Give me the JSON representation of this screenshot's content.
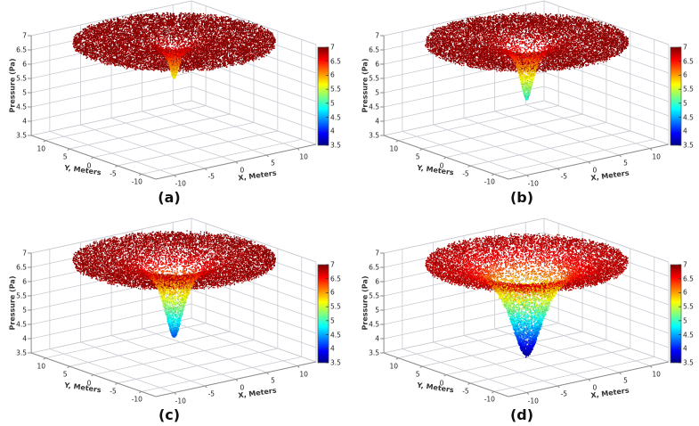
{
  "figure": {
    "background": "#ffffff",
    "grid_color": "#c9cbd2",
    "axis_color": "#8a8a8a",
    "tick_color": "#222222",
    "label_color": "#333333",
    "caption_color": "#111111",
    "colorbar_border": "#555555"
  },
  "chart_data": [
    {
      "type": "scatter3d",
      "label": "(a)",
      "xlabel": "X, Meters",
      "ylabel": "Y, Meters",
      "zlabel": "Pressure (Pa)",
      "x_ticks": [
        -10,
        -5,
        0,
        5,
        10
      ],
      "y_ticks": [
        10,
        5,
        0,
        -5,
        -10
      ],
      "z_ticks": [
        3.5,
        4,
        4.5,
        5,
        5.5,
        6,
        6.5,
        7
      ],
      "colorbar_ticks": [
        7,
        6.5,
        6,
        5.5,
        5,
        4.5,
        4,
        3.5
      ],
      "xlim": [
        -13,
        13
      ],
      "ylim": [
        -13,
        13
      ],
      "zlim": [
        3.5,
        7
      ],
      "colormap": "jet",
      "grid": true,
      "points": {
        "disc_radius_m": 13,
        "far_pressure_pa": 6.95,
        "tip_pressure_pa": 5.7,
        "core_radius_m": 0.85,
        "n_disc": 12000,
        "n_funnel": 600,
        "seed": 7
      },
      "description": "Flat pressure disc near 7 Pa with a narrow shallow vortex core dipping to about 5.7 Pa"
    },
    {
      "type": "scatter3d",
      "label": "(b)",
      "xlabel": "X, Meters",
      "ylabel": "Y, Meters",
      "zlabel": "Pressure (Pa)",
      "x_ticks": [
        -10,
        -5,
        0,
        5,
        10
      ],
      "y_ticks": [
        10,
        5,
        0,
        -5,
        -10
      ],
      "z_ticks": [
        3.5,
        4,
        4.5,
        5,
        5.5,
        6,
        6.5,
        7
      ],
      "colorbar_ticks": [
        7,
        6.5,
        6,
        5.5,
        5,
        4.5,
        4,
        3.5
      ],
      "xlim": [
        -13,
        13
      ],
      "ylim": [
        -13,
        13
      ],
      "zlim": [
        3.5,
        7
      ],
      "colormap": "jet",
      "grid": true,
      "points": {
        "disc_radius_m": 13,
        "far_pressure_pa": 6.95,
        "tip_pressure_pa": 4.95,
        "core_radius_m": 1.1,
        "n_disc": 12000,
        "n_funnel": 1100,
        "seed": 11
      },
      "description": "Pressure disc near 7 Pa with vortex funnel dipping to about 5.0 Pa"
    },
    {
      "type": "scatter3d",
      "label": "(c)",
      "xlabel": "X, Meters",
      "ylabel": "Y, Meters",
      "zlabel": "Pressure (Pa)",
      "x_ticks": [
        -10,
        -5,
        0,
        5,
        10
      ],
      "y_ticks": [
        10,
        5,
        0,
        -5,
        -10
      ],
      "z_ticks": [
        3.5,
        4,
        4.5,
        5,
        5.5,
        6,
        6.5,
        7
      ],
      "colorbar_ticks": [
        7,
        6.5,
        6,
        5.5,
        5,
        4.5,
        4,
        3.5
      ],
      "xlim": [
        -13,
        13
      ],
      "ylim": [
        -13,
        13
      ],
      "zlim": [
        3.5,
        7
      ],
      "colormap": "jet",
      "grid": true,
      "points": {
        "disc_radius_m": 13,
        "far_pressure_pa": 6.95,
        "tip_pressure_pa": 4.25,
        "core_radius_m": 1.55,
        "n_disc": 11000,
        "n_funnel": 1800,
        "seed": 13
      },
      "description": "Pressure disc near 7 Pa with wider vortex funnel dipping to about 4.3 Pa"
    },
    {
      "type": "scatter3d",
      "label": "(d)",
      "xlabel": "X, Meters",
      "ylabel": "Y, Meters",
      "zlabel": "Pressure (Pa)",
      "x_ticks": [
        -10,
        -5,
        0,
        5,
        10
      ],
      "y_ticks": [
        10,
        5,
        0,
        -5,
        -10
      ],
      "z_ticks": [
        3.5,
        4,
        4.5,
        5,
        5.5,
        6,
        6.5,
        7
      ],
      "colorbar_ticks": [
        7,
        6.5,
        6,
        5.5,
        5,
        4.5,
        4,
        3.5
      ],
      "xlim": [
        -13,
        13
      ],
      "ylim": [
        -13,
        13
      ],
      "zlim": [
        3.5,
        7
      ],
      "colormap": "jet",
      "grid": true,
      "points": {
        "disc_radius_m": 13,
        "far_pressure_pa": 6.95,
        "tip_pressure_pa": 3.6,
        "core_radius_m": 2.6,
        "n_disc": 11000,
        "n_funnel": 3200,
        "seed": 17
      },
      "description": "Deep wide vortex funnel, rim near 7 Pa descending through yellow and cyan to about 3.6 Pa at the core"
    }
  ]
}
